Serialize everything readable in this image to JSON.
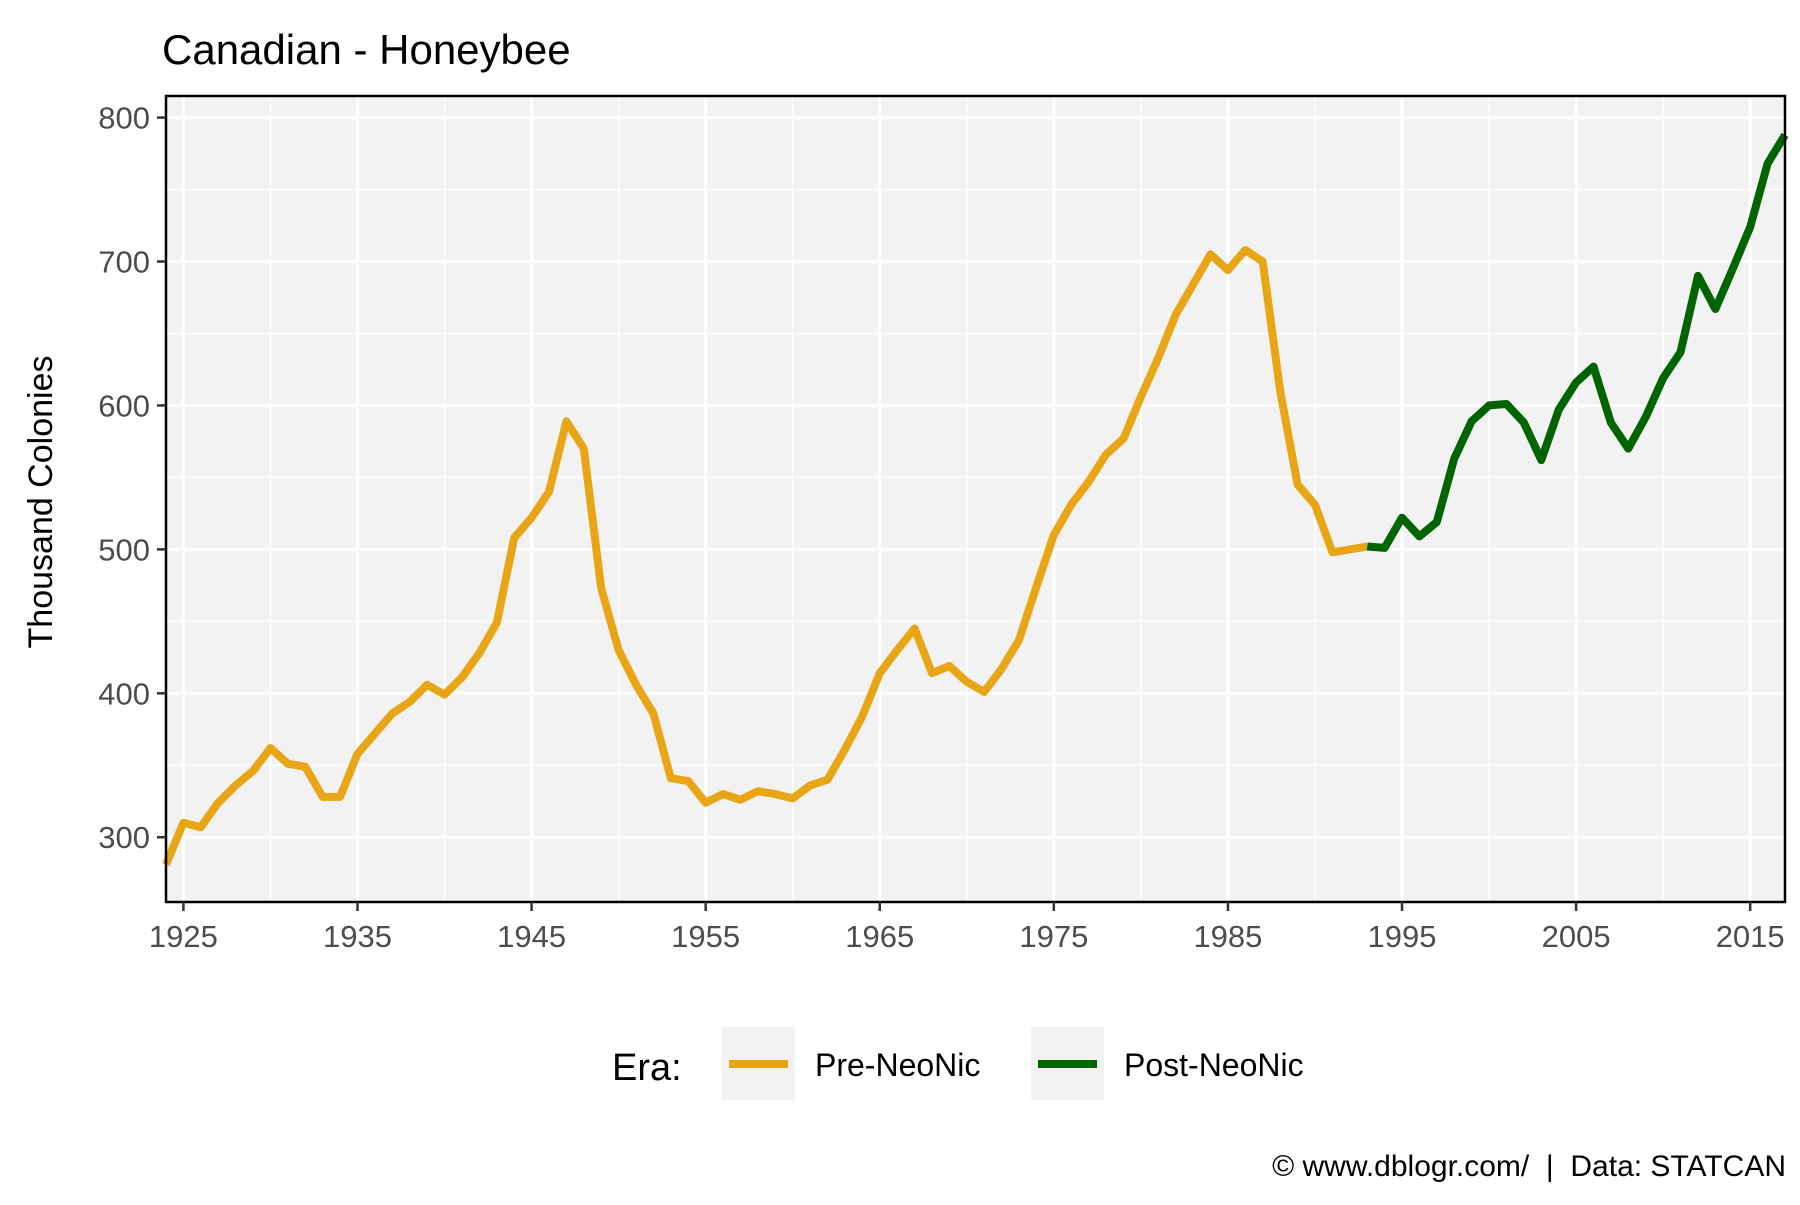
{
  "chart_data": {
    "type": "line",
    "title": "Canadian - Honeybee",
    "xlabel": "",
    "ylabel": "Thousand Colonies",
    "xlim": [
      1924,
      2017
    ],
    "ylim": [
      255,
      815
    ],
    "x_ticks": [
      1925,
      1935,
      1945,
      1955,
      1965,
      1975,
      1985,
      1995,
      2005,
      2015
    ],
    "y_ticks": [
      300,
      400,
      500,
      600,
      700,
      800
    ],
    "grid": true,
    "legend": {
      "title": "Era:",
      "position": "bottom",
      "entries": [
        "Pre-NeoNic",
        "Post-NeoNic"
      ]
    },
    "caption": "© www.dblogr.com/  |  Data: STATCAN",
    "colors": {
      "Pre-NeoNic": "#E8A617",
      "Post-NeoNic": "#006400",
      "panel_background": "#F2F2F2",
      "grid": "#FFFFFF"
    },
    "series": [
      {
        "name": "Pre-NeoNic",
        "x": [
          1924,
          1925,
          1926,
          1927,
          1928,
          1929,
          1930,
          1931,
          1932,
          1933,
          1934,
          1935,
          1936,
          1937,
          1938,
          1939,
          1940,
          1941,
          1942,
          1943,
          1944,
          1945,
          1946,
          1947,
          1948,
          1949,
          1950,
          1951,
          1952,
          1953,
          1954,
          1955,
          1956,
          1957,
          1958,
          1959,
          1960,
          1961,
          1962,
          1963,
          1964,
          1965,
          1966,
          1967,
          1968,
          1969,
          1970,
          1971,
          1972,
          1973,
          1974,
          1975,
          1976,
          1977,
          1978,
          1979,
          1980,
          1981,
          1982,
          1983,
          1984,
          1985,
          1986,
          1987,
          1988,
          1989,
          1990,
          1991,
          1992,
          1993
        ],
        "values": [
          281,
          310,
          307,
          324,
          336,
          346,
          362,
          351,
          349,
          328,
          328,
          358,
          372,
          386,
          394,
          406,
          399,
          411,
          428,
          449,
          508,
          522,
          540,
          589,
          570,
          473,
          430,
          406,
          386,
          341,
          339,
          324,
          330,
          326,
          332,
          330,
          327,
          336,
          340,
          361,
          384,
          414,
          430,
          445,
          414,
          419,
          408,
          401,
          417,
          437,
          474,
          510,
          531,
          547,
          566,
          577,
          606,
          633,
          663,
          684,
          705,
          694,
          708,
          700,
          610,
          545,
          531,
          498,
          500,
          502
        ]
      },
      {
        "name": "Post-NeoNic",
        "x": [
          1993,
          1994,
          1995,
          1996,
          1997,
          1998,
          1999,
          2000,
          2001,
          2002,
          2003,
          2004,
          2005,
          2006,
          2007,
          2008,
          2009,
          2010,
          2011,
          2012,
          2013,
          2014,
          2015,
          2016,
          2017
        ],
        "values": [
          502,
          501,
          522,
          509,
          519,
          563,
          589,
          600,
          601,
          588,
          562,
          597,
          616,
          627,
          588,
          570,
          592,
          619,
          637,
          690,
          667,
          695,
          724,
          768,
          788
        ]
      }
    ]
  }
}
